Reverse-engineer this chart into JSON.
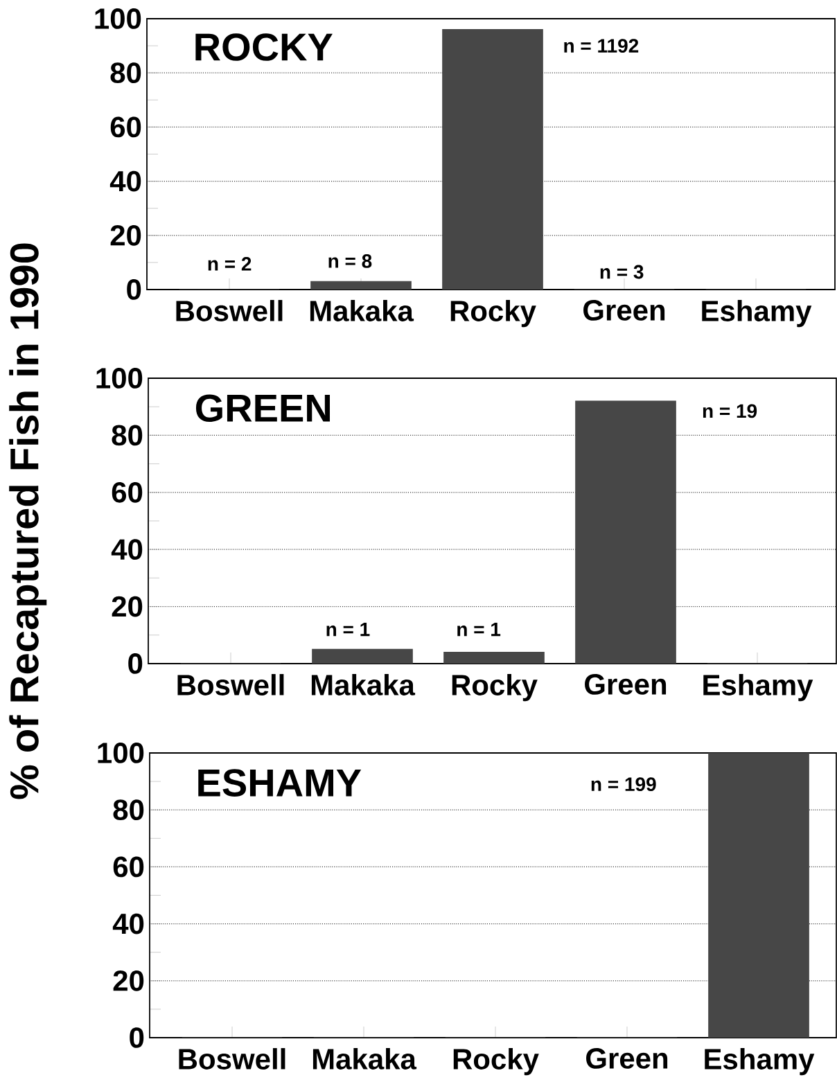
{
  "chart_data": [
    {
      "type": "bar",
      "title": "ROCKY",
      "categories": [
        "Boswell",
        "Makaka",
        "Rocky",
        "Green",
        "Eshamy"
      ],
      "values": [
        0,
        3,
        96,
        0,
        0
      ],
      "color": "#474747",
      "ylim": [
        0,
        100
      ],
      "yticks": [
        0,
        20,
        40,
        60,
        80,
        100
      ],
      "grid": "y",
      "annotations": [
        "n = 2",
        "n = 8",
        "n = 1192",
        "n = 3"
      ]
    },
    {
      "type": "bar",
      "title": "GREEN",
      "ylabel": "% of Recaptured Fish in 1990",
      "categories": [
        "Boswell",
        "Makaka",
        "Rocky",
        "Green",
        "Eshamy"
      ],
      "values": [
        0,
        5,
        4,
        92,
        0
      ],
      "color": "#474747",
      "ylim": [
        0,
        100
      ],
      "yticks": [
        0,
        20,
        40,
        60,
        80,
        100
      ],
      "grid": "y",
      "annotations": [
        "n = 1",
        "n = 1",
        "n = 19"
      ]
    },
    {
      "type": "bar",
      "title": "ESHAMY",
      "categories": [
        "Boswell",
        "Makaka",
        "Rocky",
        "Green",
        "Eshamy"
      ],
      "values": [
        0,
        0,
        0,
        0,
        100
      ],
      "color": "#474747",
      "ylim": [
        0,
        100
      ],
      "yticks": [
        0,
        20,
        40,
        60,
        80,
        100
      ],
      "grid": "y",
      "annotations": [
        "n = 199"
      ]
    }
  ]
}
